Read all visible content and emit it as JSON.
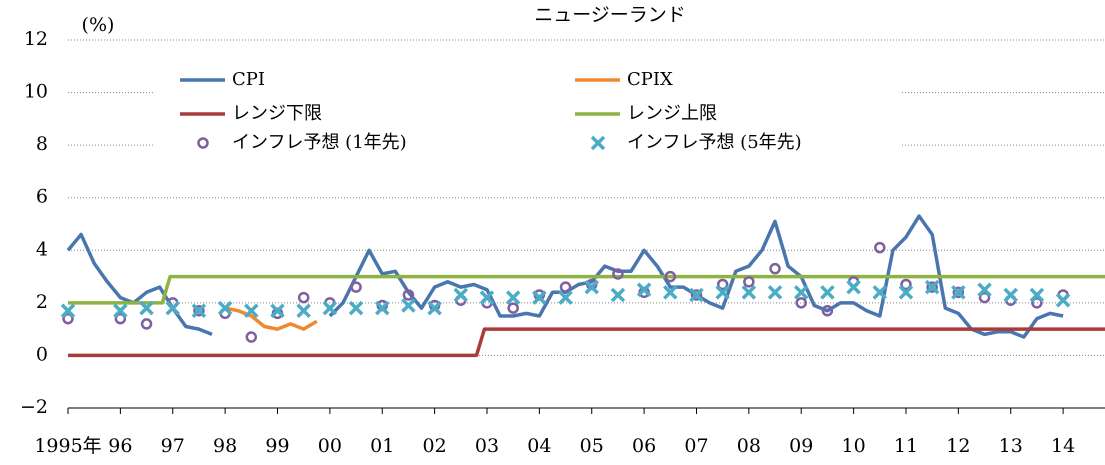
{
  "chart_data": {
    "type": "line",
    "title": "ニュージーランド",
    "y_label": "(%)",
    "xlim": [
      1995,
      2014.8
    ],
    "xticks": [
      {
        "value": 1995,
        "label": "1995年"
      },
      {
        "value": 1996,
        "label": "96"
      },
      {
        "value": 1997,
        "label": "97"
      },
      {
        "value": 1998,
        "label": "98"
      },
      {
        "value": 1999,
        "label": "99"
      },
      {
        "value": 2000,
        "label": "00"
      },
      {
        "value": 2001,
        "label": "01"
      },
      {
        "value": 2002,
        "label": "02"
      },
      {
        "value": 2003,
        "label": "03"
      },
      {
        "value": 2004,
        "label": "04"
      },
      {
        "value": 2005,
        "label": "05"
      },
      {
        "value": 2006,
        "label": "06"
      },
      {
        "value": 2007,
        "label": "07"
      },
      {
        "value": 2008,
        "label": "08"
      },
      {
        "value": 2009,
        "label": "09"
      },
      {
        "value": 2010,
        "label": "10"
      },
      {
        "value": 2011,
        "label": "11"
      },
      {
        "value": 2012,
        "label": "12"
      },
      {
        "value": 2013,
        "label": "13"
      },
      {
        "value": 2014,
        "label": "14"
      }
    ],
    "ylim": [
      -2,
      12
    ],
    "yticks": [
      {
        "value": -2,
        "label": "−2"
      },
      0,
      2,
      4,
      6,
      8,
      10,
      12
    ],
    "grid": true,
    "series": [
      {
        "name": "CPI",
        "color": "#4a76b0",
        "x": [
          1995,
          1995.25,
          1995.5,
          1995.75,
          1996,
          1996.25,
          1996.5,
          1996.75,
          1997,
          1997.25,
          1997.5,
          1997.75,
          1998,
          2000,
          2000.25,
          2000.5,
          2000.75,
          2001,
          2001.25,
          2001.5,
          2001.75,
          2002,
          2002.25,
          2002.5,
          2002.75,
          2003,
          2003.25,
          2003.5,
          2003.75,
          2004,
          2004.25,
          2004.5,
          2004.75,
          2005,
          2005.25,
          2005.5,
          2005.75,
          2006,
          2006.25,
          2006.5,
          2006.75,
          2007,
          2007.25,
          2007.5,
          2007.75,
          2008,
          2008.25,
          2008.5,
          2008.75,
          2009,
          2009.25,
          2009.5,
          2009.75,
          2010,
          2010.25,
          2010.5,
          2010.75,
          2011,
          2011.25,
          2011.5,
          2011.75,
          2012,
          2012.25,
          2012.5,
          2012.75,
          2013,
          2013.25,
          2013.5,
          2013.75,
          2014
        ],
        "values": [
          4.0,
          4.6,
          3.5,
          2.8,
          2.2,
          2.0,
          2.4,
          2.6,
          1.8,
          1.1,
          1.0,
          0.8,
          null,
          1.5,
          2.0,
          3.0,
          4.0,
          3.1,
          3.2,
          2.4,
          1.8,
          2.6,
          2.8,
          2.6,
          2.7,
          2.5,
          1.5,
          1.5,
          1.6,
          1.5,
          2.4,
          2.4,
          2.7,
          2.8,
          3.4,
          3.2,
          3.2,
          4.0,
          3.4,
          2.6,
          2.6,
          2.3,
          2.0,
          1.8,
          3.2,
          3.4,
          4.0,
          5.1,
          3.4,
          3.0,
          1.9,
          1.7,
          2.0,
          2.0,
          1.7,
          1.5,
          4.0,
          4.5,
          5.3,
          4.6,
          1.8,
          1.6,
          1.0,
          0.8,
          0.9,
          0.9,
          0.7,
          1.4,
          1.6,
          1.5
        ]
      },
      {
        "name": "CPIX",
        "color": "#f0882f",
        "x": [
          1998,
          1998.25,
          1998.5,
          1998.75,
          1999,
          1999.25,
          1999.5,
          1999.75
        ],
        "values": [
          1.8,
          1.7,
          1.5,
          1.1,
          1.0,
          1.2,
          1.0,
          1.3
        ]
      },
      {
        "name": "レンジ下限",
        "color": "#a83c3a",
        "x": [
          1995,
          2002.8,
          2002.95,
          2014.8
        ],
        "values": [
          0,
          0,
          1,
          1
        ]
      },
      {
        "name": "レンジ上限",
        "color": "#8db440",
        "x": [
          1995,
          1996.8,
          1996.95,
          2014.8
        ],
        "values": [
          2,
          2,
          3,
          3
        ]
      },
      {
        "name": "インフレ予想 (1年先)",
        "color": "#7f5f9f",
        "marker": "circle",
        "x": [
          1995,
          1996,
          1996.5,
          1997,
          1997.5,
          1998,
          1998.5,
          1999,
          1999.5,
          2000,
          2000.5,
          2001,
          2001.5,
          2002,
          2002.5,
          2003,
          2003.5,
          2004,
          2004.5,
          2005,
          2005.5,
          2006,
          2006.5,
          2007,
          2007.5,
          2008,
          2008.5,
          2009,
          2009.5,
          2010,
          2010.5,
          2011,
          2011.5,
          2012,
          2012.5,
          2013,
          2013.5,
          2014
        ],
        "values": [
          1.4,
          1.4,
          1.2,
          2.0,
          1.7,
          1.6,
          0.7,
          1.6,
          2.2,
          2.0,
          2.6,
          1.9,
          2.3,
          1.9,
          2.1,
          2.0,
          1.8,
          2.3,
          2.6,
          2.7,
          3.1,
          2.4,
          3.0,
          2.3,
          2.7,
          2.8,
          3.3,
          2.0,
          1.7,
          2.8,
          4.1,
          2.7,
          2.6,
          2.4,
          2.2,
          2.1,
          2.0,
          2.3
        ]
      },
      {
        "name": "インフレ予想 (5年先)",
        "color": "#4bacc6",
        "marker": "x",
        "x": [
          1995,
          1996,
          1996.5,
          1997,
          1997.5,
          1998,
          1998.5,
          1999,
          1999.5,
          2000,
          2000.5,
          2001,
          2001.5,
          2002,
          2002.5,
          2003,
          2003.5,
          2004,
          2004.5,
          2005,
          2005.5,
          2006,
          2006.5,
          2007,
          2007.5,
          2008,
          2008.5,
          2009,
          2009.5,
          2010,
          2010.5,
          2011,
          2011.5,
          2012,
          2012.5,
          2013,
          2013.5,
          2014
        ],
        "values": [
          1.7,
          1.7,
          1.8,
          1.8,
          1.7,
          1.8,
          1.7,
          1.7,
          1.7,
          1.8,
          1.8,
          1.8,
          1.9,
          1.8,
          2.3,
          2.2,
          2.2,
          2.2,
          2.2,
          2.6,
          2.3,
          2.5,
          2.4,
          2.3,
          2.4,
          2.4,
          2.4,
          2.4,
          2.4,
          2.6,
          2.4,
          2.4,
          2.6,
          2.4,
          2.5,
          2.3,
          2.3,
          2.1
        ]
      }
    ]
  }
}
